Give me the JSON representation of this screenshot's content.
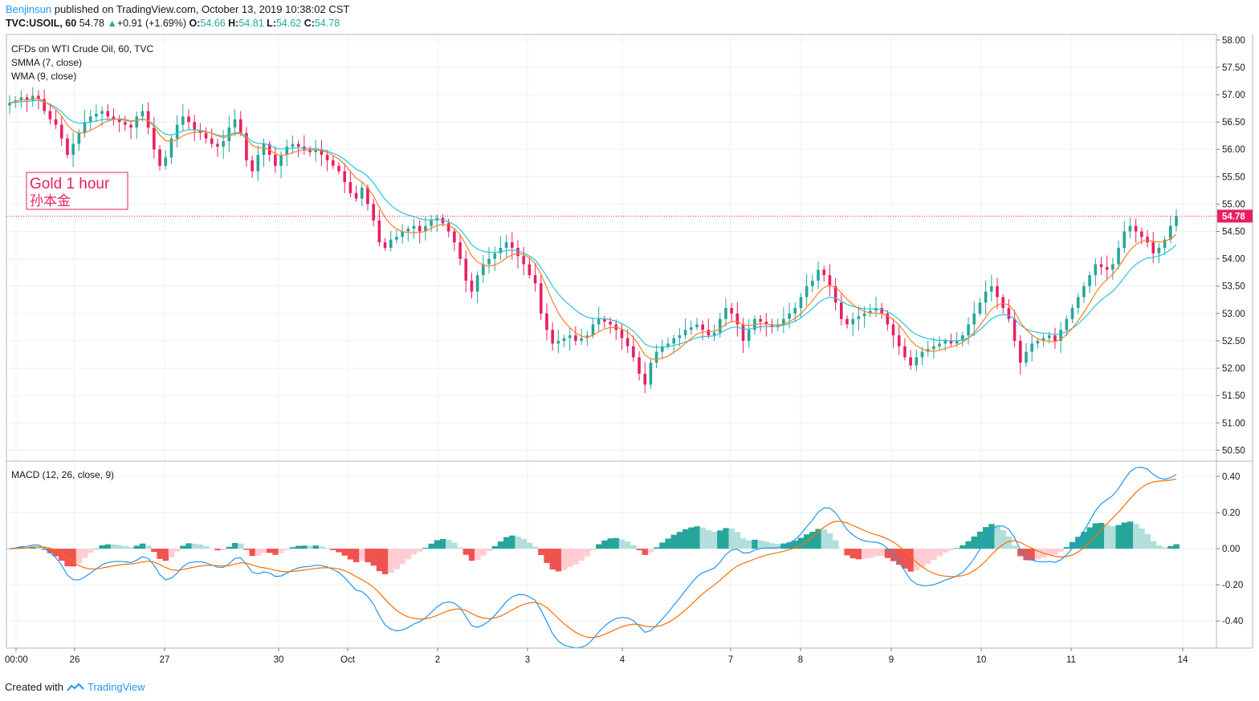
{
  "header": {
    "author": "Benjinsun",
    "published_text": "published on TradingView.com, October 13, 2019 10:38:02 CST",
    "symbol": "TVC:USOIL, 60",
    "last": "54.78",
    "change_arrow": "▲",
    "change": "+0.91 (+1.69%)",
    "o_label": "O:",
    "o": "54.66",
    "h_label": "H:",
    "h": "54.81",
    "l_label": "L:",
    "l": "54.62",
    "c_label": "C:",
    "c": "54.78"
  },
  "legend": {
    "title": "CFDs on WTI Crude Oil, 60, TVC",
    "smma": "SMMA (7, close)",
    "wma": "WMA (9, close)",
    "macd": "MACD (12, 26, close, 9)"
  },
  "annotation": {
    "line1": "Gold 1 hour",
    "line2": "孙本金"
  },
  "footer": {
    "created_with": "Created with",
    "brand": "TradingView"
  },
  "colors": {
    "up": "#26a69a",
    "down": "#e91e63",
    "smma": "#26c6da",
    "wma": "#ff7f27",
    "macd": "#2196f3",
    "signal": "#ff6d00",
    "hist_up_strong": "#26a69a",
    "hist_up_weak": "#b2dfdb",
    "hist_dn_strong": "#ef5350",
    "hist_dn_weak": "#ffcdd2",
    "price_tag": "#e91e63",
    "annotation": "#e91e63"
  },
  "chart_data": [
    {
      "type": "candlestick",
      "title": "CFDs on WTI Crude Oil, 60, TVC",
      "last_price": 54.78,
      "ylim": [
        50.3,
        58.1
      ],
      "y_ticks": [
        "58.00",
        "57.50",
        "57.00",
        "56.50",
        "56.00",
        "55.50",
        "55.00",
        "54.50",
        "54.00",
        "53.50",
        "53.00",
        "52.50",
        "52.00",
        "51.50",
        "51.00",
        "50.50"
      ],
      "x_ticks": [
        "00:00",
        "26",
        "27",
        "30",
        "Oct",
        "2",
        "3",
        "4",
        "7",
        "8",
        "9",
        "10",
        "11",
        "14"
      ],
      "grid": true,
      "series": [
        {
          "name": "SMMA (7, close)"
        },
        {
          "name": "WMA (9, close)"
        }
      ],
      "closes": [
        56.85,
        56.9,
        56.95,
        56.9,
        56.98,
        56.92,
        56.7,
        56.55,
        56.45,
        56.2,
        55.9,
        56.1,
        56.3,
        56.5,
        56.6,
        56.65,
        56.7,
        56.6,
        56.55,
        56.5,
        56.45,
        56.4,
        56.6,
        56.7,
        56.4,
        56.0,
        55.7,
        55.85,
        56.2,
        56.45,
        56.6,
        56.5,
        56.35,
        56.3,
        56.2,
        56.1,
        56.05,
        56.15,
        56.4,
        56.55,
        56.3,
        55.8,
        55.6,
        55.9,
        56.1,
        55.9,
        55.7,
        55.9,
        56.05,
        56.1,
        56.05,
        56.0,
        55.95,
        56.0,
        55.9,
        55.8,
        55.7,
        55.6,
        55.4,
        55.2,
        55.1,
        55.3,
        55.0,
        54.7,
        54.3,
        54.2,
        54.35,
        54.4,
        54.5,
        54.55,
        54.6,
        54.5,
        54.6,
        54.7,
        54.75,
        54.65,
        54.5,
        54.3,
        54.0,
        53.6,
        53.4,
        53.7,
        53.9,
        54.0,
        54.1,
        54.2,
        54.3,
        54.2,
        54.05,
        53.9,
        53.7,
        53.55,
        53.0,
        52.7,
        52.45,
        52.5,
        52.55,
        52.6,
        52.5,
        52.55,
        52.6,
        52.8,
        52.9,
        52.85,
        52.8,
        52.7,
        52.55,
        52.4,
        52.2,
        51.9,
        51.7,
        52.1,
        52.3,
        52.4,
        52.45,
        52.55,
        52.6,
        52.7,
        52.75,
        52.8,
        52.7,
        52.6,
        52.65,
        52.9,
        53.1,
        53.0,
        52.8,
        52.5,
        52.7,
        52.9,
        52.85,
        52.8,
        52.75,
        52.8,
        52.9,
        53.0,
        53.1,
        53.3,
        53.5,
        53.6,
        53.8,
        53.7,
        53.5,
        53.2,
        52.9,
        52.8,
        52.9,
        52.95,
        53.0,
        53.05,
        53.1,
        53.0,
        52.8,
        52.6,
        52.4,
        52.2,
        52.05,
        52.2,
        52.3,
        52.35,
        52.4,
        52.45,
        52.5,
        52.45,
        52.5,
        52.6,
        52.8,
        53.0,
        53.2,
        53.4,
        53.5,
        53.3,
        53.1,
        52.9,
        52.5,
        52.1,
        52.3,
        52.45,
        52.5,
        52.55,
        52.6,
        52.5,
        52.7,
        52.9,
        53.1,
        53.3,
        53.5,
        53.7,
        53.9,
        53.85,
        53.8,
        53.9,
        54.2,
        54.5,
        54.6,
        54.5,
        54.4,
        54.3,
        54.1,
        54.2,
        54.35,
        54.6,
        54.78
      ]
    },
    {
      "type": "line",
      "title": "MACD (12, 26, close, 9)",
      "ylim": [
        -0.55,
        0.48
      ],
      "y_ticks": [
        "0.40",
        "0.20",
        "0.00",
        "-0.20",
        "-0.40"
      ],
      "series": [
        {
          "name": "MACD"
        },
        {
          "name": "Signal"
        },
        {
          "name": "Histogram"
        }
      ],
      "grid": true
    }
  ]
}
